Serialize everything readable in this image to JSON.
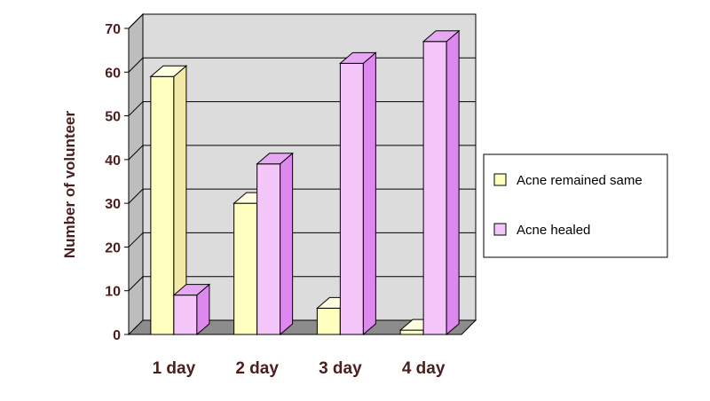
{
  "chart_data": {
    "type": "bar",
    "title": "",
    "xlabel": "",
    "ylabel": "Number of volunteer",
    "categories": [
      "1 day",
      "2 day",
      "3 day",
      "4 day"
    ],
    "series": [
      {
        "name": "Acne remained same",
        "values": [
          59,
          30,
          6,
          1
        ],
        "color": "#ffffc0",
        "side_color": "#f3eaa8",
        "top_color": "#fffde0"
      },
      {
        "name": "Acne healed",
        "values": [
          9,
          39,
          62,
          67
        ],
        "color": "#f4c6fa",
        "side_color": "#dd88ee",
        "top_color": "#e7a8f3"
      }
    ],
    "ylim": [
      0,
      70
    ],
    "yticks": [
      0,
      10,
      20,
      30,
      40,
      50,
      60,
      70
    ],
    "grid": true,
    "legend_position": "right",
    "plot_background": "#dcdcdc"
  }
}
